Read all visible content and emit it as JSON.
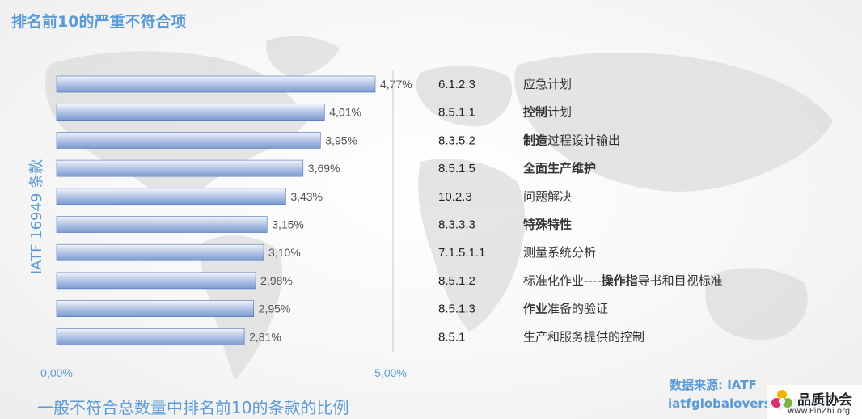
{
  "title": "排名前10的严重不符合项",
  "subtitle": "一般不符合总数量中排名前10的条款的比例",
  "source_label": "数据来源: IATF",
  "source_url": "iatfglobaloversight.org",
  "logo": {
    "name": "品质协会",
    "url": "www.PinZhi.org"
  },
  "colors": {
    "accent": "#5b9bd5",
    "bar_top": "#f2f5fb",
    "bar_bottom": "#7b9bd0",
    "bar_edge": "#4a6fb5"
  },
  "chart_data": {
    "type": "bar",
    "orientation": "horizontal",
    "ylabel": "IATF 16949 条款",
    "xlim": [
      0,
      5
    ],
    "x_ticks": [
      "0,00%",
      "5,00%"
    ],
    "grid": false,
    "categories": [
      "6.1.2.3",
      "8.5.1.1",
      "8.3.5.2",
      "8.5.1.5",
      "10.2.3",
      "8.3.3.3",
      "7.1.5.1.1",
      "8.5.1.2",
      "8.5.1.3",
      "8.5.1"
    ],
    "values": [
      4.77,
      4.01,
      3.95,
      3.69,
      3.43,
      3.15,
      3.1,
      2.98,
      2.95,
      2.81
    ],
    "value_labels": [
      "4,77%",
      "4,01%",
      "3,95%",
      "3,69%",
      "3,43%",
      "3,15%",
      "3,10%",
      "2,98%",
      "2,95%",
      "2,81%"
    ],
    "descriptions": [
      [
        {
          "t": "应急计划",
          "b": false
        }
      ],
      [
        {
          "t": "控制",
          "b": true
        },
        {
          "t": "计划",
          "b": false
        }
      ],
      [
        {
          "t": "制造",
          "b": true
        },
        {
          "t": "过程设计输出",
          "b": false
        }
      ],
      [
        {
          "t": "全面生产维护",
          "b": true
        }
      ],
      [
        {
          "t": "问题解决",
          "b": false
        }
      ],
      [
        {
          "t": "特殊特性",
          "b": true
        }
      ],
      [
        {
          "t": "测量系统分析",
          "b": false
        }
      ],
      [
        {
          "t": "标准化作业----",
          "b": false
        },
        {
          "t": "操作指",
          "b": true
        },
        {
          "t": "导书和目视标准",
          "b": false
        }
      ],
      [
        {
          "t": "作业",
          "b": true
        },
        {
          "t": "准备的验证",
          "b": false
        }
      ],
      [
        {
          "t": "生产和服务提供的控制",
          "b": false
        }
      ]
    ]
  }
}
